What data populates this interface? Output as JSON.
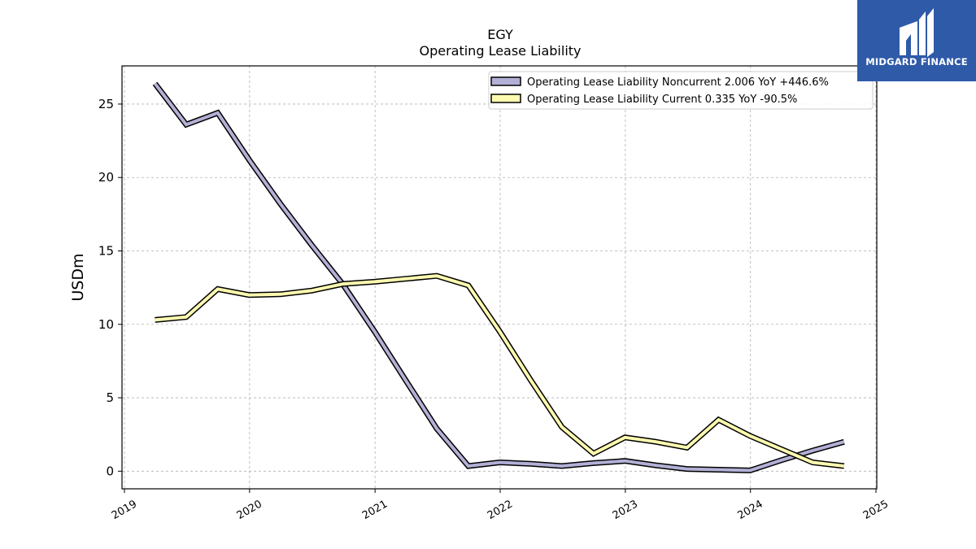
{
  "chart_data": {
    "type": "line",
    "title": "EGY",
    "subtitle": "Operating Lease Liability",
    "xlabel": "",
    "ylabel": "USDm",
    "xlim": [
      "2019-01-01",
      "2025-01-01"
    ],
    "ylim": [
      -1.2,
      27.6
    ],
    "grid": true,
    "legend_position": "top-right",
    "x_ticks": [
      "2019",
      "2020",
      "2021",
      "2022",
      "2023",
      "2024",
      "2025"
    ],
    "y_ticks": [
      "0",
      "5",
      "10",
      "15",
      "20",
      "25"
    ],
    "x": [
      "2019-03-31",
      "2019-06-30",
      "2019-09-30",
      "2019-12-31",
      "2020-03-31",
      "2020-06-30",
      "2020-09-30",
      "2020-12-31",
      "2021-03-31",
      "2021-06-30",
      "2021-09-30",
      "2021-12-31",
      "2022-03-31",
      "2022-06-30",
      "2022-09-30",
      "2022-12-31",
      "2023-03-31",
      "2023-06-30",
      "2023-09-30",
      "2023-12-31",
      "2024-03-31",
      "2024-06-30",
      "2024-09-30"
    ],
    "series": [
      {
        "name": "Operating Lease Liability Noncurrent  2.006 YoY +446.6%",
        "color": "#b3b0d6",
        "values": [
          26.4,
          23.6,
          24.4,
          21.2,
          18.2,
          15.4,
          12.7,
          9.5,
          6.2,
          2.9,
          0.35,
          0.6,
          0.5,
          0.35,
          0.55,
          0.7,
          0.4,
          0.15,
          0.1,
          0.05,
          0.75,
          1.4,
          2.0
        ]
      },
      {
        "name": "Operating Lease Liability Current  0.335 YoY -90.5%",
        "color": "#fdfbb0",
        "values": [
          10.3,
          10.5,
          12.4,
          12.0,
          12.05,
          12.3,
          12.75,
          12.9,
          13.1,
          13.3,
          12.65,
          9.5,
          6.2,
          3.0,
          1.2,
          2.3,
          2.0,
          1.6,
          3.5,
          2.4,
          1.5,
          0.6,
          0.35
        ]
      }
    ]
  },
  "logo": {
    "text": "MIDGARD FINANCE",
    "color": "#2f5aa8"
  }
}
